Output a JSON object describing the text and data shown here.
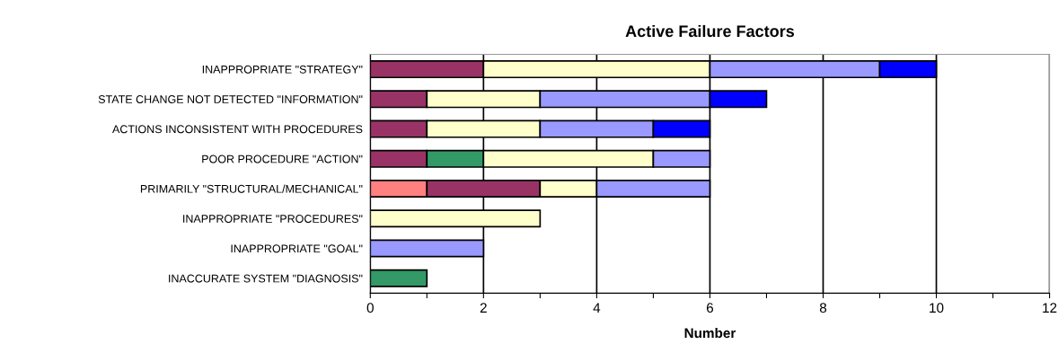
{
  "chart_data": {
    "type": "bar",
    "orientation": "horizontal",
    "stacked": true,
    "title": "Active Failure Factors",
    "xlabel": "Number",
    "categories": [
      "INAPPROPRIATE \"STRATEGY\"",
      "STATE CHANGE NOT DETECTED \"INFORMATION\"",
      "ACTIONS INCONSISTENT WITH PROCEDURES",
      "POOR PROCEDURE \"ACTION\"",
      "PRIMARILY \"STRUCTURAL/MECHANICAL\"",
      "INAPPROPRIATE \"PROCEDURES\"",
      "INAPPROPRIATE \"GOAL\"",
      "INACCURATE SYSTEM \"DIAGNOSIS\""
    ],
    "series": [
      {
        "color": "#ff8080",
        "values": [
          0,
          0,
          0,
          0,
          1,
          0,
          0,
          0
        ]
      },
      {
        "color": "#993366",
        "values": [
          2,
          1,
          1,
          1,
          2,
          0,
          0,
          0
        ]
      },
      {
        "color": "#339966",
        "values": [
          0,
          0,
          0,
          1,
          0,
          0,
          0,
          1
        ]
      },
      {
        "color": "#ffffcc",
        "values": [
          4,
          2,
          2,
          3,
          1,
          3,
          0,
          0
        ]
      },
      {
        "color": "#9999ff",
        "values": [
          3,
          3,
          2,
          1,
          2,
          0,
          2,
          0
        ]
      },
      {
        "color": "#0000ff",
        "values": [
          1,
          1,
          1,
          0,
          0,
          0,
          0,
          0
        ]
      }
    ],
    "xlim": [
      0,
      12
    ],
    "xticks": [
      0,
      {
        "value": 1,
        "label": null
      },
      2,
      {
        "value": 3,
        "label": null
      },
      4,
      {
        "value": 5,
        "label": null
      },
      6,
      {
        "value": 7,
        "label": null
      },
      8,
      {
        "value": 9,
        "label": null
      },
      10,
      {
        "value": 11,
        "label": null
      },
      12
    ],
    "grid": "x",
    "legend": false
  }
}
